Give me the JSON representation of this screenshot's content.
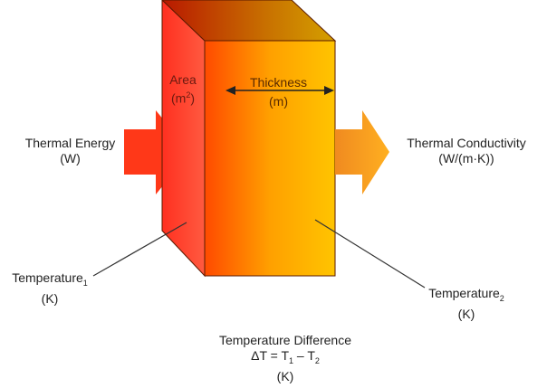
{
  "labels": {
    "thermal_energy": {
      "title": "Thermal Energy",
      "unit": "(W)"
    },
    "area": {
      "title": "Area",
      "unit_base": "(m",
      "unit_sup": "2",
      "unit_end": ")"
    },
    "thickness": {
      "title": "Thickness",
      "unit": "(m)"
    },
    "thermal_conductivity": {
      "title": "Thermal  Conductivity",
      "unit": "(W/(m·K))"
    },
    "temperature1": {
      "title": "Temperature",
      "sub": "1",
      "unit": "(K)"
    },
    "temperature2": {
      "title": "Temperature",
      "sub": "2",
      "unit": "(K)"
    },
    "temperature_difference": {
      "title": "Temperature  Difference",
      "eq_a": "ΔT = T",
      "eq_sub1": "1",
      "eq_b": " – T",
      "eq_sub2": "2",
      "unit": "(K)"
    }
  },
  "colors": {
    "hot": "#ff2a1a",
    "warm": "#ff7a00",
    "cool": "#ffc000",
    "arrow_left": "#ff3a1a",
    "arrow_right": "#f7a020"
  }
}
